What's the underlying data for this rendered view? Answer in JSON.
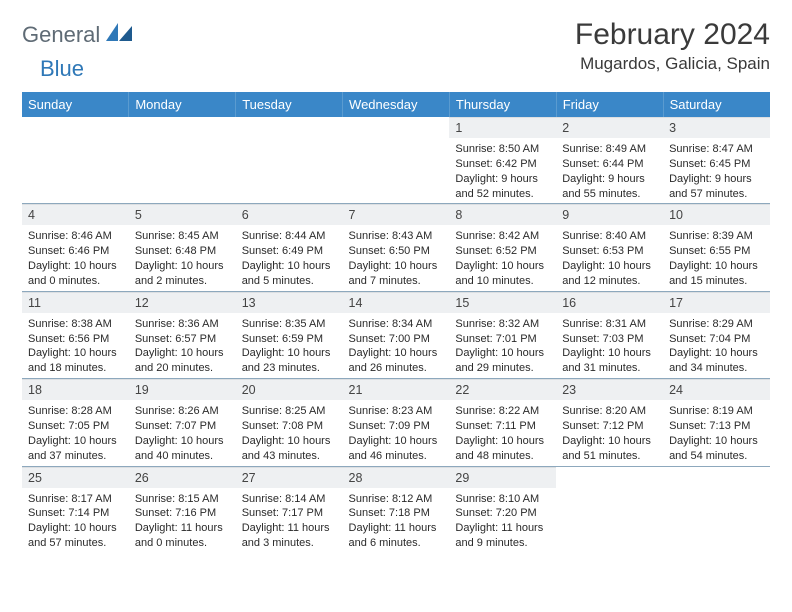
{
  "brand": {
    "part1": "General",
    "part2": "Blue"
  },
  "title": "February 2024",
  "location": "Mugardos, Galicia, Spain",
  "weekdays": [
    "Sunday",
    "Monday",
    "Tuesday",
    "Wednesday",
    "Thursday",
    "Friday",
    "Saturday"
  ],
  "colors": {
    "header_bg": "#3a87c8",
    "daynum_bg": "#eef0f2",
    "rule": "#8da8bd",
    "brand_dark": "#5f6b75",
    "brand_blue": "#2f78b7"
  },
  "weeks": [
    [
      {
        "n": "",
        "sr": "",
        "ss": "",
        "dl1": "",
        "dl2": "",
        "empty": true
      },
      {
        "n": "",
        "sr": "",
        "ss": "",
        "dl1": "",
        "dl2": "",
        "empty": true
      },
      {
        "n": "",
        "sr": "",
        "ss": "",
        "dl1": "",
        "dl2": "",
        "empty": true
      },
      {
        "n": "",
        "sr": "",
        "ss": "",
        "dl1": "",
        "dl2": "",
        "empty": true
      },
      {
        "n": "1",
        "sr": "Sunrise: 8:50 AM",
        "ss": "Sunset: 6:42 PM",
        "dl1": "Daylight: 9 hours",
        "dl2": "and 52 minutes."
      },
      {
        "n": "2",
        "sr": "Sunrise: 8:49 AM",
        "ss": "Sunset: 6:44 PM",
        "dl1": "Daylight: 9 hours",
        "dl2": "and 55 minutes."
      },
      {
        "n": "3",
        "sr": "Sunrise: 8:47 AM",
        "ss": "Sunset: 6:45 PM",
        "dl1": "Daylight: 9 hours",
        "dl2": "and 57 minutes."
      }
    ],
    [
      {
        "n": "4",
        "sr": "Sunrise: 8:46 AM",
        "ss": "Sunset: 6:46 PM",
        "dl1": "Daylight: 10 hours",
        "dl2": "and 0 minutes."
      },
      {
        "n": "5",
        "sr": "Sunrise: 8:45 AM",
        "ss": "Sunset: 6:48 PM",
        "dl1": "Daylight: 10 hours",
        "dl2": "and 2 minutes."
      },
      {
        "n": "6",
        "sr": "Sunrise: 8:44 AM",
        "ss": "Sunset: 6:49 PM",
        "dl1": "Daylight: 10 hours",
        "dl2": "and 5 minutes."
      },
      {
        "n": "7",
        "sr": "Sunrise: 8:43 AM",
        "ss": "Sunset: 6:50 PM",
        "dl1": "Daylight: 10 hours",
        "dl2": "and 7 minutes."
      },
      {
        "n": "8",
        "sr": "Sunrise: 8:42 AM",
        "ss": "Sunset: 6:52 PM",
        "dl1": "Daylight: 10 hours",
        "dl2": "and 10 minutes."
      },
      {
        "n": "9",
        "sr": "Sunrise: 8:40 AM",
        "ss": "Sunset: 6:53 PM",
        "dl1": "Daylight: 10 hours",
        "dl2": "and 12 minutes."
      },
      {
        "n": "10",
        "sr": "Sunrise: 8:39 AM",
        "ss": "Sunset: 6:55 PM",
        "dl1": "Daylight: 10 hours",
        "dl2": "and 15 minutes."
      }
    ],
    [
      {
        "n": "11",
        "sr": "Sunrise: 8:38 AM",
        "ss": "Sunset: 6:56 PM",
        "dl1": "Daylight: 10 hours",
        "dl2": "and 18 minutes."
      },
      {
        "n": "12",
        "sr": "Sunrise: 8:36 AM",
        "ss": "Sunset: 6:57 PM",
        "dl1": "Daylight: 10 hours",
        "dl2": "and 20 minutes."
      },
      {
        "n": "13",
        "sr": "Sunrise: 8:35 AM",
        "ss": "Sunset: 6:59 PM",
        "dl1": "Daylight: 10 hours",
        "dl2": "and 23 minutes."
      },
      {
        "n": "14",
        "sr": "Sunrise: 8:34 AM",
        "ss": "Sunset: 7:00 PM",
        "dl1": "Daylight: 10 hours",
        "dl2": "and 26 minutes."
      },
      {
        "n": "15",
        "sr": "Sunrise: 8:32 AM",
        "ss": "Sunset: 7:01 PM",
        "dl1": "Daylight: 10 hours",
        "dl2": "and 29 minutes."
      },
      {
        "n": "16",
        "sr": "Sunrise: 8:31 AM",
        "ss": "Sunset: 7:03 PM",
        "dl1": "Daylight: 10 hours",
        "dl2": "and 31 minutes."
      },
      {
        "n": "17",
        "sr": "Sunrise: 8:29 AM",
        "ss": "Sunset: 7:04 PM",
        "dl1": "Daylight: 10 hours",
        "dl2": "and 34 minutes."
      }
    ],
    [
      {
        "n": "18",
        "sr": "Sunrise: 8:28 AM",
        "ss": "Sunset: 7:05 PM",
        "dl1": "Daylight: 10 hours",
        "dl2": "and 37 minutes."
      },
      {
        "n": "19",
        "sr": "Sunrise: 8:26 AM",
        "ss": "Sunset: 7:07 PM",
        "dl1": "Daylight: 10 hours",
        "dl2": "and 40 minutes."
      },
      {
        "n": "20",
        "sr": "Sunrise: 8:25 AM",
        "ss": "Sunset: 7:08 PM",
        "dl1": "Daylight: 10 hours",
        "dl2": "and 43 minutes."
      },
      {
        "n": "21",
        "sr": "Sunrise: 8:23 AM",
        "ss": "Sunset: 7:09 PM",
        "dl1": "Daylight: 10 hours",
        "dl2": "and 46 minutes."
      },
      {
        "n": "22",
        "sr": "Sunrise: 8:22 AM",
        "ss": "Sunset: 7:11 PM",
        "dl1": "Daylight: 10 hours",
        "dl2": "and 48 minutes."
      },
      {
        "n": "23",
        "sr": "Sunrise: 8:20 AM",
        "ss": "Sunset: 7:12 PM",
        "dl1": "Daylight: 10 hours",
        "dl2": "and 51 minutes."
      },
      {
        "n": "24",
        "sr": "Sunrise: 8:19 AM",
        "ss": "Sunset: 7:13 PM",
        "dl1": "Daylight: 10 hours",
        "dl2": "and 54 minutes."
      }
    ],
    [
      {
        "n": "25",
        "sr": "Sunrise: 8:17 AM",
        "ss": "Sunset: 7:14 PM",
        "dl1": "Daylight: 10 hours",
        "dl2": "and 57 minutes."
      },
      {
        "n": "26",
        "sr": "Sunrise: 8:15 AM",
        "ss": "Sunset: 7:16 PM",
        "dl1": "Daylight: 11 hours",
        "dl2": "and 0 minutes."
      },
      {
        "n": "27",
        "sr": "Sunrise: 8:14 AM",
        "ss": "Sunset: 7:17 PM",
        "dl1": "Daylight: 11 hours",
        "dl2": "and 3 minutes."
      },
      {
        "n": "28",
        "sr": "Sunrise: 8:12 AM",
        "ss": "Sunset: 7:18 PM",
        "dl1": "Daylight: 11 hours",
        "dl2": "and 6 minutes."
      },
      {
        "n": "29",
        "sr": "Sunrise: 8:10 AM",
        "ss": "Sunset: 7:20 PM",
        "dl1": "Daylight: 11 hours",
        "dl2": "and 9 minutes."
      },
      {
        "n": "",
        "sr": "",
        "ss": "",
        "dl1": "",
        "dl2": "",
        "empty": true
      },
      {
        "n": "",
        "sr": "",
        "ss": "",
        "dl1": "",
        "dl2": "",
        "empty": true
      }
    ]
  ]
}
